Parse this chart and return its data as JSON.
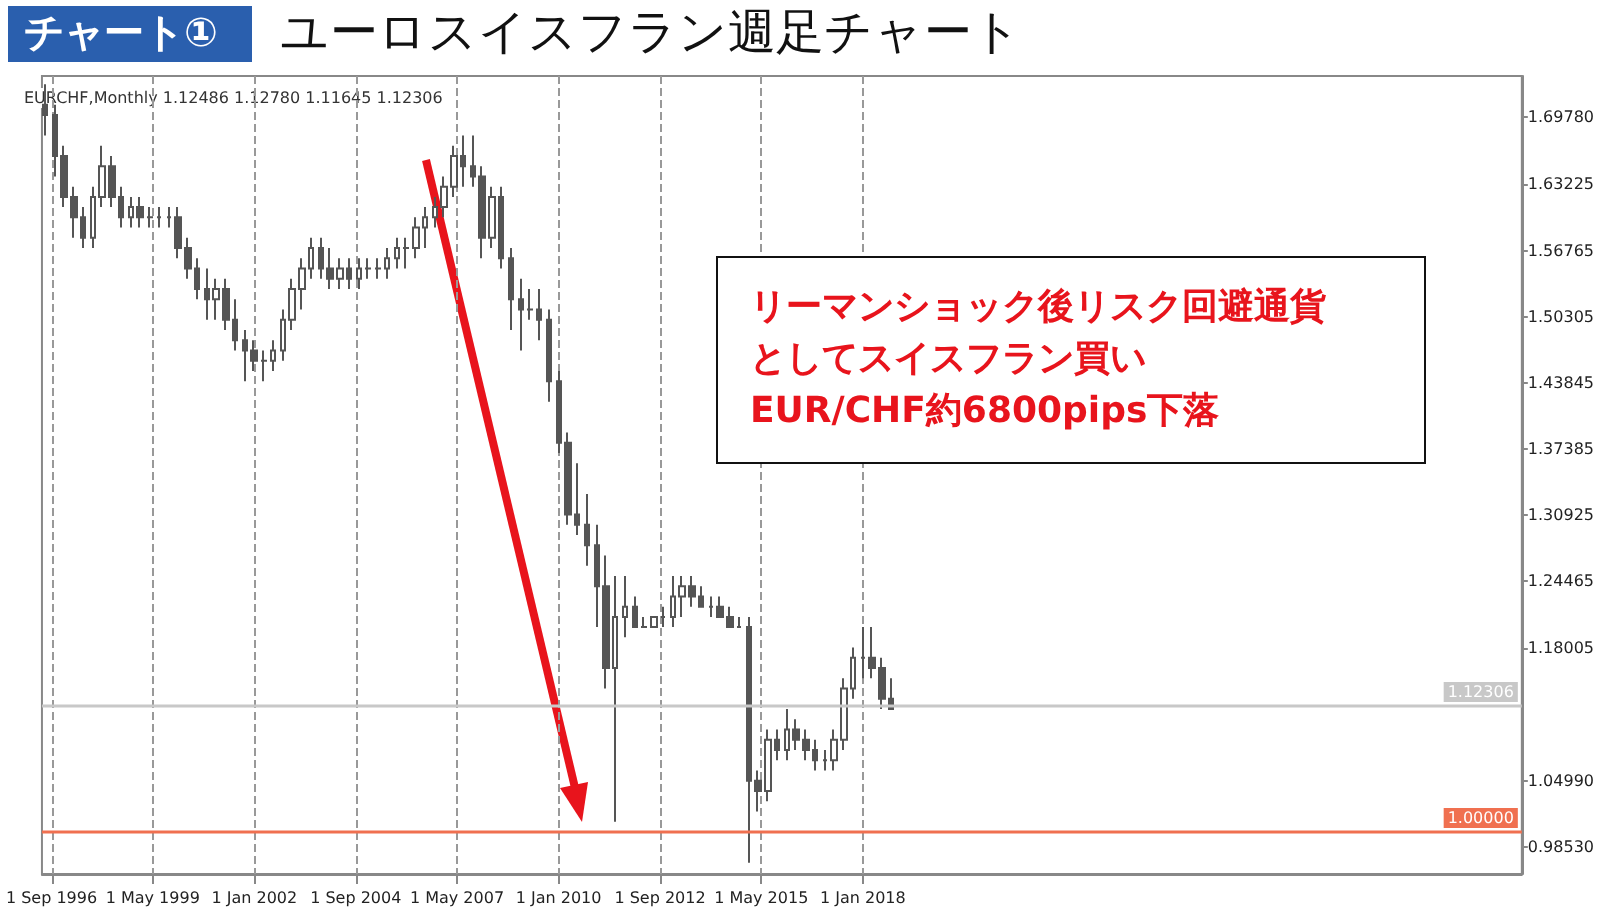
{
  "chart_data": {
    "type": "candlestick",
    "title": "ユーロスイスフラン週足チャート",
    "annotations": [
      "チャート①",
      "EURCHF,Monthly 1.12486 1.12780 1.11645 1.12306",
      "リーマンショック後リスク回避通貨としてスイスフラン買い",
      "EUR/CHF約6800pips下落"
    ],
    "color": "#555555",
    "x": [
      "1996-07",
      "1996-10",
      "1997-01",
      "1997-04",
      "1997-07",
      "1997-10",
      "1998-01",
      "1998-04",
      "1998-07",
      "1998-10",
      "1999-01",
      "1999-04",
      "1999-07",
      "1999-10",
      "2000-01",
      "2000-04",
      "2000-07",
      "2000-10",
      "2001-01",
      "2001-04",
      "2001-07",
      "2001-10",
      "2002-01",
      "2002-04",
      "2002-07",
      "2002-10",
      "2003-01",
      "2003-04",
      "2003-07",
      "2003-10",
      "2004-01",
      "2004-04",
      "2004-07",
      "2004-10",
      "2005-01",
      "2005-04",
      "2005-07",
      "2005-10",
      "2006-01",
      "2006-04",
      "2006-07",
      "2006-10",
      "2007-01",
      "2007-04",
      "2007-07",
      "2007-10",
      "2008-01",
      "2008-04",
      "2008-07",
      "2008-10",
      "2009-01",
      "2009-04",
      "2009-07",
      "2009-10",
      "2010-01",
      "2010-04",
      "2010-07",
      "2010-10",
      "2011-01",
      "2011-04",
      "2011-07",
      "2011-10",
      "2012-01",
      "2012-04",
      "2012-07",
      "2012-10",
      "2013-01",
      "2013-04",
      "2013-07",
      "2013-10",
      "2014-01",
      "2014-04",
      "2014-07",
      "2014-10",
      "2015-01",
      "2015-04",
      "2015-07",
      "2015-10",
      "2016-01",
      "2016-04",
      "2016-07",
      "2016-10",
      "2017-01",
      "2017-04",
      "2017-07",
      "2017-10",
      "2018-01",
      "2018-04",
      "2018-07",
      "2018-10"
    ],
    "ohlc": [
      [
        1.71,
        1.73,
        1.68,
        1.7
      ],
      [
        1.7,
        1.71,
        1.64,
        1.66
      ],
      [
        1.66,
        1.67,
        1.61,
        1.62
      ],
      [
        1.62,
        1.63,
        1.58,
        1.6
      ],
      [
        1.6,
        1.61,
        1.57,
        1.58
      ],
      [
        1.58,
        1.63,
        1.57,
        1.62
      ],
      [
        1.62,
        1.67,
        1.61,
        1.65
      ],
      [
        1.65,
        1.66,
        1.61,
        1.62
      ],
      [
        1.62,
        1.63,
        1.59,
        1.6
      ],
      [
        1.6,
        1.62,
        1.59,
        1.61
      ],
      [
        1.61,
        1.62,
        1.59,
        1.6
      ],
      [
        1.6,
        1.61,
        1.59,
        1.6
      ],
      [
        1.6,
        1.61,
        1.59,
        1.6
      ],
      [
        1.6,
        1.61,
        1.59,
        1.6
      ],
      [
        1.6,
        1.61,
        1.56,
        1.57
      ],
      [
        1.57,
        1.58,
        1.54,
        1.55
      ],
      [
        1.55,
        1.56,
        1.52,
        1.53
      ],
      [
        1.53,
        1.55,
        1.5,
        1.52
      ],
      [
        1.52,
        1.54,
        1.5,
        1.53
      ],
      [
        1.53,
        1.54,
        1.49,
        1.5
      ],
      [
        1.5,
        1.52,
        1.47,
        1.48
      ],
      [
        1.48,
        1.49,
        1.44,
        1.47
      ],
      [
        1.47,
        1.48,
        1.45,
        1.46
      ],
      [
        1.46,
        1.47,
        1.44,
        1.46
      ],
      [
        1.46,
        1.48,
        1.45,
        1.47
      ],
      [
        1.47,
        1.51,
        1.46,
        1.5
      ],
      [
        1.5,
        1.54,
        1.49,
        1.53
      ],
      [
        1.53,
        1.56,
        1.51,
        1.55
      ],
      [
        1.55,
        1.58,
        1.54,
        1.57
      ],
      [
        1.57,
        1.58,
        1.54,
        1.55
      ],
      [
        1.55,
        1.57,
        1.53,
        1.54
      ],
      [
        1.54,
        1.56,
        1.53,
        1.55
      ],
      [
        1.55,
        1.56,
        1.53,
        1.54
      ],
      [
        1.54,
        1.56,
        1.53,
        1.55
      ],
      [
        1.55,
        1.56,
        1.54,
        1.55
      ],
      [
        1.55,
        1.56,
        1.54,
        1.55
      ],
      [
        1.55,
        1.57,
        1.54,
        1.56
      ],
      [
        1.56,
        1.58,
        1.55,
        1.57
      ],
      [
        1.57,
        1.58,
        1.55,
        1.57
      ],
      [
        1.57,
        1.6,
        1.56,
        1.59
      ],
      [
        1.59,
        1.61,
        1.57,
        1.6
      ],
      [
        1.6,
        1.62,
        1.59,
        1.61
      ],
      [
        1.61,
        1.64,
        1.6,
        1.63
      ],
      [
        1.63,
        1.67,
        1.62,
        1.66
      ],
      [
        1.66,
        1.68,
        1.63,
        1.65
      ],
      [
        1.65,
        1.68,
        1.63,
        1.64
      ],
      [
        1.64,
        1.65,
        1.56,
        1.58
      ],
      [
        1.58,
        1.63,
        1.57,
        1.62
      ],
      [
        1.62,
        1.63,
        1.55,
        1.56
      ],
      [
        1.56,
        1.57,
        1.49,
        1.52
      ],
      [
        1.52,
        1.54,
        1.47,
        1.51
      ],
      [
        1.51,
        1.53,
        1.5,
        1.51
      ],
      [
        1.51,
        1.53,
        1.48,
        1.5
      ],
      [
        1.5,
        1.51,
        1.42,
        1.44
      ],
      [
        1.44,
        1.45,
        1.37,
        1.38
      ],
      [
        1.38,
        1.39,
        1.3,
        1.31
      ],
      [
        1.31,
        1.36,
        1.29,
        1.3
      ],
      [
        1.3,
        1.33,
        1.26,
        1.28
      ],
      [
        1.28,
        1.3,
        1.2,
        1.24
      ],
      [
        1.24,
        1.27,
        1.14,
        1.16
      ],
      [
        1.16,
        1.25,
        1.01,
        1.21
      ],
      [
        1.21,
        1.25,
        1.19,
        1.22
      ],
      [
        1.22,
        1.23,
        1.2,
        1.2
      ],
      [
        1.2,
        1.21,
        1.2,
        1.2
      ],
      [
        1.2,
        1.21,
        1.2,
        1.21
      ],
      [
        1.21,
        1.22,
        1.2,
        1.21
      ],
      [
        1.21,
        1.25,
        1.2,
        1.23
      ],
      [
        1.23,
        1.25,
        1.21,
        1.24
      ],
      [
        1.24,
        1.25,
        1.22,
        1.23
      ],
      [
        1.23,
        1.24,
        1.22,
        1.22
      ],
      [
        1.22,
        1.23,
        1.21,
        1.22
      ],
      [
        1.22,
        1.23,
        1.21,
        1.21
      ],
      [
        1.21,
        1.22,
        1.2,
        1.2
      ],
      [
        1.2,
        1.21,
        1.2,
        1.2
      ],
      [
        1.2,
        1.21,
        0.97,
        1.05
      ],
      [
        1.05,
        1.06,
        1.02,
        1.04
      ],
      [
        1.04,
        1.1,
        1.03,
        1.09
      ],
      [
        1.09,
        1.1,
        1.07,
        1.08
      ],
      [
        1.08,
        1.12,
        1.07,
        1.1
      ],
      [
        1.1,
        1.11,
        1.08,
        1.09
      ],
      [
        1.09,
        1.1,
        1.07,
        1.08
      ],
      [
        1.08,
        1.09,
        1.06,
        1.07
      ],
      [
        1.07,
        1.08,
        1.06,
        1.07
      ],
      [
        1.07,
        1.1,
        1.06,
        1.09
      ],
      [
        1.09,
        1.15,
        1.08,
        1.14
      ],
      [
        1.14,
        1.18,
        1.13,
        1.17
      ],
      [
        1.17,
        1.2,
        1.15,
        1.17
      ],
      [
        1.17,
        1.2,
        1.15,
        1.16
      ],
      [
        1.16,
        1.17,
        1.12,
        1.13
      ],
      [
        1.13,
        1.15,
        1.12,
        1.12
      ]
    ],
    "xlim": [
      "1996-06",
      "2035-05"
    ],
    "xticks": [
      {
        "value": "1996-09-01",
        "label": "1 Sep 1996"
      },
      {
        "value": "1999-05-01",
        "label": "1 May 1999"
      },
      {
        "value": "2002-01-01",
        "label": "1 Jan 2002"
      },
      {
        "value": "2004-09-01",
        "label": "1 Sep 2004"
      },
      {
        "value": "2007-05-01",
        "label": "1 May 2007"
      },
      {
        "value": "2010-01-01",
        "label": "1 Jan 2010"
      },
      {
        "value": "2012-09-01",
        "label": "1 Sep 2012"
      },
      {
        "value": "2015-05-01",
        "label": "1 May 2015"
      },
      {
        "value": "2018-01-01",
        "label": "1 Jan 2018"
      }
    ],
    "ylim": [
      0.959,
      1.738
    ],
    "yticks": [
      {
        "value": 0.9853,
        "label": "0.98530"
      },
      {
        "value": 1.0499,
        "label": "1.04990"
      },
      {
        "value": 1.18005,
        "label": "1.18005"
      },
      {
        "value": 1.24465,
        "label": "1.24465"
      },
      {
        "value": 1.30925,
        "label": "1.30925"
      },
      {
        "value": 1.37385,
        "label": "1.37385"
      },
      {
        "value": 1.43845,
        "label": "1.43845"
      },
      {
        "value": 1.50305,
        "label": "1.50305"
      },
      {
        "value": 1.56765,
        "label": "1.56765"
      },
      {
        "value": 1.63225,
        "label": "1.63225"
      },
      {
        "value": 1.6978,
        "label": "1.69780"
      }
    ],
    "ref_lines": [
      {
        "axis": "y",
        "value": 1.12306,
        "label": "1.12306",
        "color": "#c8c8c8"
      },
      {
        "axis": "y",
        "value": 1.0,
        "label": "1.00000",
        "color": "#f07050"
      }
    ],
    "grid": "x"
  }
}
